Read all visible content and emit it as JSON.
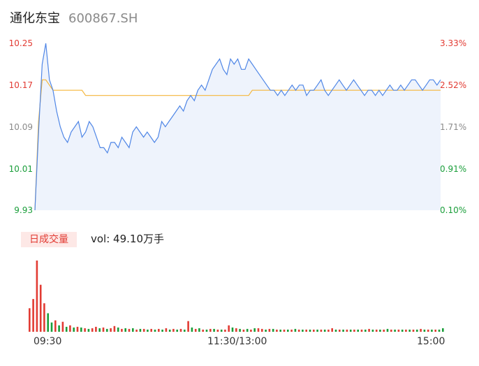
{
  "header": {
    "name": "通化东宝",
    "code": "600867.SH"
  },
  "y_left_labels": [
    "10.25",
    "10.17",
    "10.09",
    "10.01",
    "9.93"
  ],
  "y_right_labels": [
    "3.33%",
    "2.52%",
    "1.71%",
    "0.91%",
    "0.10%"
  ],
  "volume_panel": {
    "label": "日成交量",
    "vol_text": "vol: 49.10万手"
  },
  "x_labels": [
    "09:30",
    "11:30/13:00",
    "15:00"
  ],
  "colors": {
    "price_line": "#4f86e6",
    "avg_line": "#f5b63a",
    "up": "#e23b33",
    "down": "#1a9e3a",
    "fill": "#eef3fc"
  },
  "chart_data": {
    "type": "line",
    "title": "",
    "ylim": [
      9.93,
      10.25
    ],
    "series": [
      {
        "values": [
          9.93,
          10.08,
          10.21,
          10.25,
          10.18,
          10.16,
          10.12,
          10.09,
          10.07,
          10.06,
          10.08,
          10.09,
          10.1,
          10.07,
          10.08,
          10.1,
          10.09,
          10.07,
          10.05,
          10.05,
          10.04,
          10.06,
          10.06,
          10.05,
          10.07,
          10.06,
          10.05,
          10.08,
          10.09,
          10.08,
          10.07,
          10.08,
          10.07,
          10.06,
          10.07,
          10.1,
          10.09,
          10.1,
          10.11,
          10.12,
          10.13,
          10.12,
          10.14,
          10.15,
          10.14,
          10.16,
          10.17,
          10.16,
          10.18,
          10.2,
          10.21,
          10.22,
          10.2,
          10.19,
          10.22,
          10.21,
          10.22,
          10.2,
          10.2,
          10.22,
          10.21,
          10.2,
          10.19,
          10.18,
          10.17,
          10.16,
          10.16,
          10.15,
          10.16,
          10.15,
          10.16,
          10.17,
          10.16,
          10.17,
          10.17,
          10.15,
          10.16,
          10.16,
          10.17,
          10.18,
          10.16,
          10.15,
          10.16,
          10.17,
          10.18,
          10.17,
          10.16,
          10.17,
          10.18,
          10.17,
          10.16,
          10.15,
          10.16,
          10.16,
          10.15,
          10.16,
          10.15,
          10.16,
          10.17,
          10.16,
          10.16,
          10.17,
          10.16,
          10.17,
          10.18,
          10.18,
          10.17,
          10.16,
          10.17,
          10.18,
          10.18,
          10.17,
          10.18
        ],
        "color": "#4f86e6"
      },
      {
        "values": [
          9.93,
          10.1,
          10.18,
          10.18,
          10.17,
          10.16,
          10.16,
          10.16,
          10.16,
          10.16,
          10.16,
          10.16,
          10.16,
          10.16,
          10.15,
          10.15,
          10.15,
          10.15,
          10.15,
          10.15,
          10.15,
          10.15,
          10.15,
          10.15,
          10.15,
          10.15,
          10.15,
          10.15,
          10.15,
          10.15,
          10.15,
          10.15,
          10.15,
          10.15,
          10.15,
          10.15,
          10.15,
          10.15,
          10.15,
          10.15,
          10.15,
          10.15,
          10.15,
          10.15,
          10.15,
          10.15,
          10.15,
          10.15,
          10.15,
          10.15,
          10.15,
          10.15,
          10.15,
          10.15,
          10.15,
          10.15,
          10.15,
          10.15,
          10.15,
          10.15,
          10.16,
          10.16,
          10.16,
          10.16,
          10.16,
          10.16,
          10.16,
          10.16,
          10.16,
          10.16,
          10.16,
          10.16,
          10.16,
          10.16,
          10.16,
          10.16,
          10.16,
          10.16,
          10.16,
          10.16,
          10.16,
          10.16,
          10.16,
          10.16,
          10.16,
          10.16,
          10.16,
          10.16,
          10.16,
          10.16,
          10.16,
          10.16,
          10.16,
          10.16,
          10.16,
          10.16,
          10.16,
          10.16,
          10.16,
          10.16,
          10.16,
          10.16,
          10.16,
          10.16,
          10.16,
          10.16,
          10.16,
          10.16,
          10.16,
          10.16,
          10.16,
          10.16,
          10.16
        ],
        "color": "#f5b63a"
      }
    ],
    "volume": {
      "values": [
        33,
        46,
        100,
        66,
        40,
        26,
        13,
        16,
        9,
        14,
        7,
        9,
        6,
        7,
        6,
        5,
        4,
        5,
        7,
        5,
        6,
        4,
        5,
        8,
        6,
        4,
        5,
        4,
        5,
        3,
        4,
        4,
        3,
        4,
        3,
        4,
        3,
        5,
        3,
        4,
        3,
        4,
        3,
        15,
        6,
        4,
        5,
        3,
        3,
        4,
        4,
        3,
        3,
        3,
        9,
        6,
        5,
        4,
        3,
        4,
        3,
        5,
        5,
        4,
        3,
        4,
        4,
        3,
        3,
        3,
        3,
        3,
        4,
        3,
        3,
        3,
        3,
        3,
        3,
        3,
        3,
        3,
        5,
        3,
        3,
        3,
        3,
        3,
        3,
        3,
        3,
        3,
        4,
        3,
        3,
        3,
        3,
        4,
        3,
        3,
        3,
        3,
        3,
        3,
        3,
        3,
        4,
        3,
        3,
        3,
        3,
        3,
        5
      ],
      "colors": [
        "r",
        "r",
        "r",
        "r",
        "r",
        "g",
        "g",
        "r",
        "g",
        "r",
        "g",
        "r",
        "g",
        "r",
        "g",
        "r",
        "g",
        "r",
        "r",
        "g",
        "r",
        "g",
        "r",
        "r",
        "g",
        "r",
        "g",
        "r",
        "g",
        "r",
        "g",
        "r",
        "g",
        "r",
        "g",
        "r",
        "g",
        "r",
        "g",
        "r",
        "g",
        "r",
        "g",
        "r",
        "g",
        "r",
        "g",
        "r",
        "g",
        "r",
        "g",
        "r",
        "g",
        "r",
        "r",
        "g",
        "r",
        "g",
        "r",
        "g",
        "r",
        "g",
        "r",
        "r",
        "g",
        "r",
        "g",
        "r",
        "g",
        "r",
        "g",
        "r",
        "g",
        "r",
        "g",
        "r",
        "g",
        "r",
        "g",
        "r",
        "g",
        "r",
        "r",
        "g",
        "r",
        "g",
        "r",
        "g",
        "r",
        "g",
        "r",
        "g",
        "r",
        "g",
        "r",
        "g",
        "r",
        "g",
        "r",
        "g",
        "r",
        "g",
        "r",
        "g",
        "r",
        "g",
        "r",
        "g",
        "r",
        "g",
        "r",
        "g",
        "g"
      ]
    }
  }
}
